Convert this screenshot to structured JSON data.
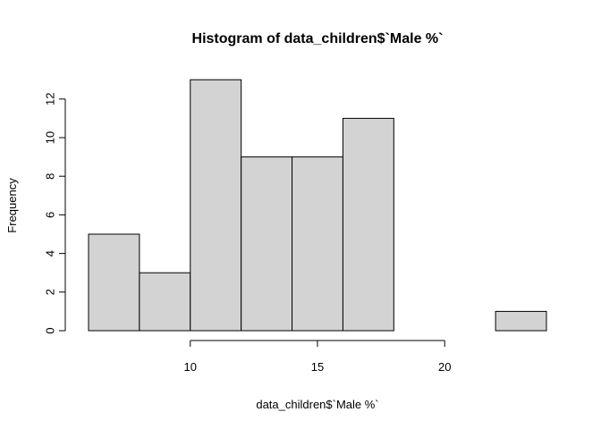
{
  "chart_data": {
    "type": "bar",
    "title": "Histogram of data_children$`Male %`",
    "xlabel": "data_children$`Male %`",
    "ylabel": "Frequency",
    "bins": [
      {
        "start": 6,
        "end": 8,
        "count": 5
      },
      {
        "start": 8,
        "end": 10,
        "count": 3
      },
      {
        "start": 10,
        "end": 12,
        "count": 13
      },
      {
        "start": 12,
        "end": 14,
        "count": 9
      },
      {
        "start": 14,
        "end": 16,
        "count": 9
      },
      {
        "start": 16,
        "end": 18,
        "count": 11
      },
      {
        "start": 18,
        "end": 20,
        "count": 0
      },
      {
        "start": 20,
        "end": 22,
        "count": 0
      },
      {
        "start": 22,
        "end": 24,
        "count": 1
      }
    ],
    "x_ticks": [
      10,
      15,
      20
    ],
    "y_ticks": [
      0,
      2,
      4,
      6,
      8,
      10,
      12
    ],
    "xlim": [
      6,
      24
    ],
    "ylim": [
      0,
      13
    ],
    "bar_fill": "#d3d3d3",
    "bar_stroke": "#000000",
    "grid": false
  }
}
